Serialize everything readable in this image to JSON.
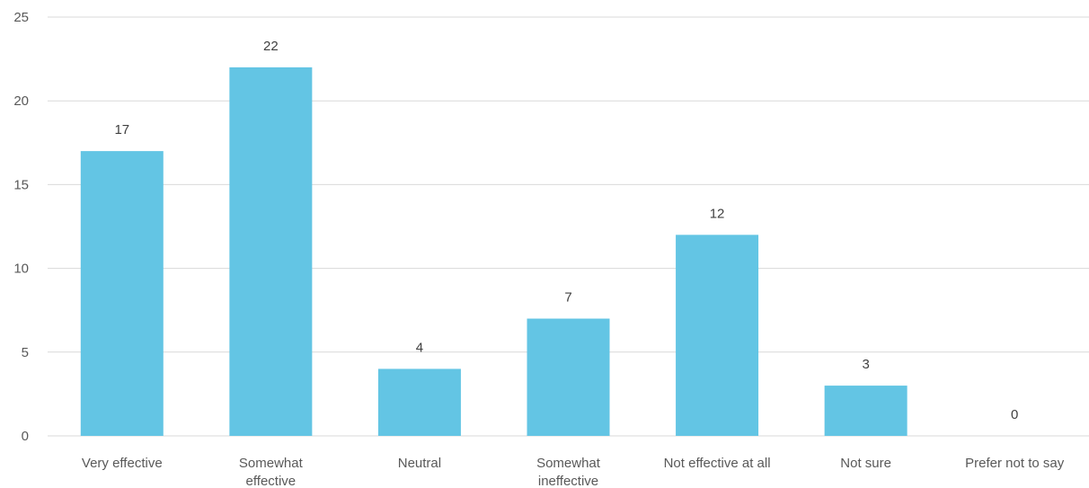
{
  "chart_data": {
    "type": "bar",
    "categories": [
      "Very effective",
      "Somewhat effective",
      "Neutral",
      "Somewhat ineffective",
      "Not effective at all",
      "Not sure",
      "Prefer not to say"
    ],
    "values": [
      17,
      22,
      4,
      7,
      12,
      3,
      0
    ],
    "yticks": [
      0,
      5,
      10,
      15,
      20,
      25
    ],
    "ylim": [
      0,
      25
    ],
    "grid": true,
    "legend": "none",
    "bar_color": "#63c5e4",
    "title": "",
    "xlabel": "",
    "ylabel": ""
  }
}
